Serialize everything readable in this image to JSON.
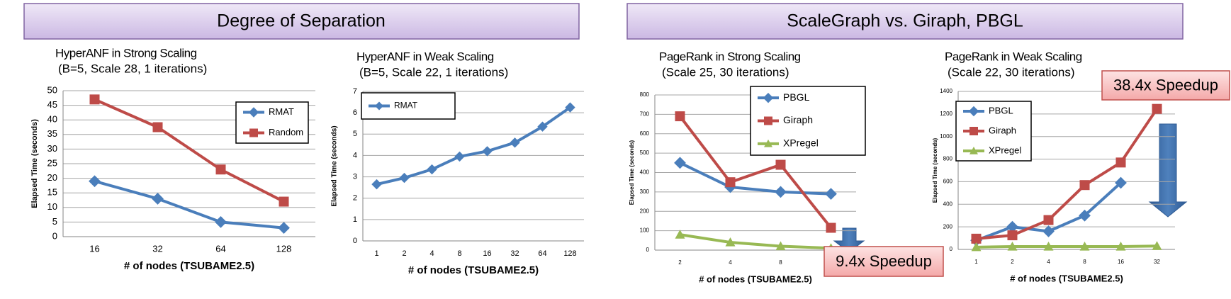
{
  "headers": [
    "Degree of Separation",
    "ScaleGraph vs. Giraph, PBGL"
  ],
  "chart_data": [
    {
      "type": "line",
      "title": "HyperANF in Strong Scaling",
      "subtitle": "(B=5, Scale 28, 1 iterations)",
      "x_label": "# of nodes (TSUBAME2.5)",
      "y_label": "Elapsed Time (seconds)",
      "categories": [
        "16",
        "32",
        "64",
        "128"
      ],
      "series": [
        {
          "name": "RMAT",
          "color": "#4a7ebb",
          "marker": "diamond",
          "values": [
            19,
            13,
            5,
            3
          ]
        },
        {
          "name": "Random",
          "color": "#be4b48",
          "marker": "square",
          "values": [
            47,
            37.5,
            23,
            12
          ]
        }
      ],
      "ylim": [
        0,
        50
      ],
      "yticks": [
        0,
        5,
        10,
        15,
        20,
        25,
        30,
        35,
        40,
        45,
        50
      ],
      "grid": true,
      "legend": "upper right"
    },
    {
      "type": "line",
      "title": "HyperANF in Weak Scaling",
      "subtitle": "(B=5, Scale 22, 1 iterations)",
      "x_label": "# of nodes (TSUBAME2.5)",
      "y_label": "Elapsed Time (seconds)",
      "categories": [
        "1",
        "2",
        "4",
        "8",
        "16",
        "32",
        "64",
        "128"
      ],
      "series": [
        {
          "name": "RMAT",
          "color": "#4a7ebb",
          "marker": "diamond",
          "values": [
            2.65,
            2.95,
            3.35,
            3.95,
            4.2,
            4.6,
            5.35,
            6.25
          ]
        }
      ],
      "ylim": [
        0,
        7
      ],
      "yticks": [
        0,
        1,
        2,
        3,
        4,
        5,
        6,
        7
      ],
      "grid": true,
      "legend": "upper left"
    },
    {
      "type": "line",
      "title": "PageRank in Strong Scaling",
      "subtitle": "(Scale 25, 30 iterations)",
      "x_label": "# of nodes (TSUBAME2.5)",
      "y_label": "Elapsed Time (seconds)",
      "categories": [
        "2",
        "4",
        "8",
        "16"
      ],
      "series": [
        {
          "name": "PBGL",
          "color": "#4a7ebb",
          "marker": "diamond",
          "values": [
            450,
            325,
            300,
            290
          ]
        },
        {
          "name": "Giraph",
          "color": "#be4b48",
          "marker": "square",
          "values": [
            690,
            350,
            440,
            115
          ]
        },
        {
          "name": "XPregel",
          "color": "#98b954",
          "marker": "triangle",
          "values": [
            80,
            40,
            20,
            10
          ]
        }
      ],
      "ylim": [
        0,
        800
      ],
      "yticks": [
        0,
        100,
        200,
        300,
        400,
        500,
        600,
        700,
        800
      ],
      "grid": true,
      "legend": "upper right",
      "annotation": "9.4x Speedup"
    },
    {
      "type": "line",
      "title": "PageRank in Weak Scaling",
      "subtitle": "(Scale 22, 30 iterations)",
      "x_label": "# of nodes (TSUBAME2.5)",
      "y_label": "Elapsed Time (seconds)",
      "categories": [
        "1",
        "2",
        "4",
        "8",
        "16",
        "32"
      ],
      "series": [
        {
          "name": "PBGL",
          "color": "#4a7ebb",
          "marker": "diamond",
          "values": [
            80,
            200,
            160,
            300,
            590,
            null
          ]
        },
        {
          "name": "Giraph",
          "color": "#be4b48",
          "marker": "square",
          "values": [
            95,
            125,
            260,
            570,
            770,
            1245
          ]
        },
        {
          "name": "XPregel",
          "color": "#98b954",
          "marker": "triangle",
          "values": [
            20,
            25,
            25,
            25,
            25,
            30
          ]
        }
      ],
      "ylim": [
        0,
        1400
      ],
      "yticks": [
        0,
        200,
        400,
        600,
        800,
        1000,
        1200,
        1400
      ],
      "grid": true,
      "legend": "upper left",
      "annotation": "38.4x Speedup"
    }
  ]
}
